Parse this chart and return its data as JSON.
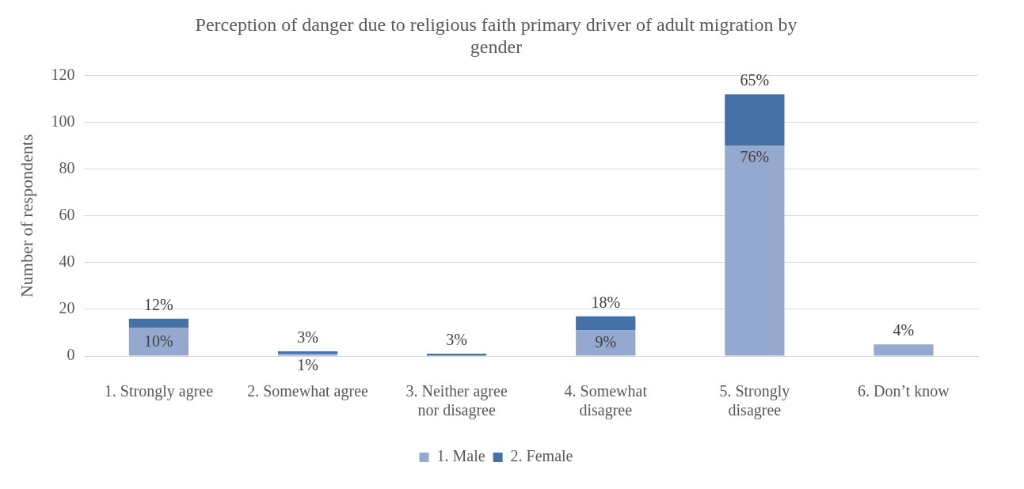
{
  "chart_data": {
    "type": "bar",
    "title": "Perception of danger due to religious faith primary driver of adult migration by gender",
    "ylabel": "Number of respondents",
    "categories": [
      "1. Strongly agree",
      "2. Somewhat agree",
      "3. Neither agree nor disagree",
      "4. Somewhat disagree",
      "5. Strongly disagree",
      "6. Don’t know"
    ],
    "series": [
      {
        "name": "1. Male",
        "color": "#95a9d0",
        "values": [
          12,
          1,
          0,
          11,
          90,
          5
        ]
      },
      {
        "name": "2. Female",
        "color": "#4571a6",
        "values": [
          4,
          1,
          1,
          6,
          22,
          0
        ]
      }
    ],
    "annotations": [
      {
        "text": "10%",
        "x": "1. Strongly agree",
        "y": 12
      },
      {
        "text": "12%",
        "x": "1. Strongly agree",
        "y": 16
      },
      {
        "text": "1%",
        "x": "2. Somewhat agree",
        "y": 1
      },
      {
        "text": "3%",
        "x": "2. Somewhat agree",
        "y": 2
      },
      {
        "text": "3%",
        "x": "3. Neither agree nor disagree",
        "y": 1
      },
      {
        "text": "9%",
        "x": "4. Somewhat disagree",
        "y": 11
      },
      {
        "text": "18%",
        "x": "4. Somewhat disagree",
        "y": 17
      },
      {
        "text": "76%",
        "x": "5. Strongly disagree",
        "y": 90
      },
      {
        "text": "65%",
        "x": "5. Strongly disagree",
        "y": 112
      },
      {
        "text": "4%",
        "x": "6. Don’t know",
        "y": 5
      }
    ],
    "stacked": true,
    "ylim": [
      0,
      120
    ],
    "yticks": [
      0,
      20,
      40,
      60,
      80,
      100,
      120
    ],
    "grid": "y",
    "legend": "bottom"
  }
}
